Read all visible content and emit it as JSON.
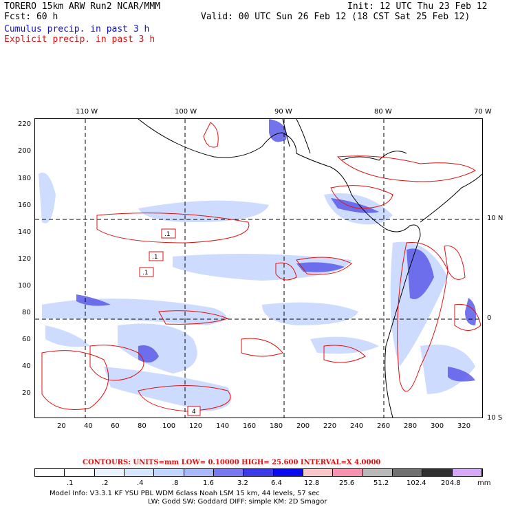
{
  "header": {
    "model_run": "TORERO  15km ARW   Run2    NCAR/MMM",
    "init": "Init: 12 UTC Thu 23 Feb 12",
    "forecast": "Fcst:   60 h",
    "valid": "Valid: 00 UTC Sun 26 Feb 12 (18 CST Sat 25 Feb 12)",
    "cumulus_label": "Cumulus precip. in past 3 h",
    "explicit_label": "Explicit precip. in past 3 h"
  },
  "map": {
    "top_lon_labels": [
      "110 W",
      "100 W",
      "90 W",
      "80 W",
      "70 W"
    ],
    "right_lat_labels": [
      "10 N",
      "0",
      "10 S"
    ],
    "left_grid_labels": [
      "220",
      "200",
      "180",
      "160",
      "140",
      "120",
      "100",
      "80",
      "60",
      "40",
      "20"
    ],
    "bottom_grid_labels": [
      "20",
      "40",
      "60",
      "80",
      "100",
      "120",
      "140",
      "160",
      "180",
      "200",
      "220",
      "240",
      "260",
      "280",
      "300",
      "320"
    ],
    "contour_labels": [
      ".1",
      ".1",
      ".1",
      "4"
    ]
  },
  "contour_info": {
    "text": "CONTOURS:  UNITS=mm  LOW= 0.10000      HIGH=  25.600      INTERVAL=X  4.0000"
  },
  "legend": {
    "labels": [
      ".1",
      ".2",
      ".4",
      ".8",
      "1.6",
      "3.2",
      "6.4",
      "12.8",
      "25.6",
      "51.2",
      "102.4",
      "204.8"
    ],
    "unit": "mm",
    "colors": [
      "#ffffff",
      "#ffffff",
      "#eaf2ff",
      "#d6e6ff",
      "#c0d6ff",
      "#a8b8f8",
      "#7878f0",
      "#3a3ae8",
      "#0a0af0",
      "#f8c8c8",
      "#f890b0",
      "#b8b8b8",
      "#707070",
      "#303030",
      "#d8a8f8"
    ]
  },
  "model_info": {
    "line1": "Model Info: V3.3.1    KF     YSU PBL   WDM 6class  Noah LSM  15 km,    44 levels,    57 sec",
    "line2": "LW: Godd SW: Goddard DIFF: simple KM: 2D Smagor"
  }
}
